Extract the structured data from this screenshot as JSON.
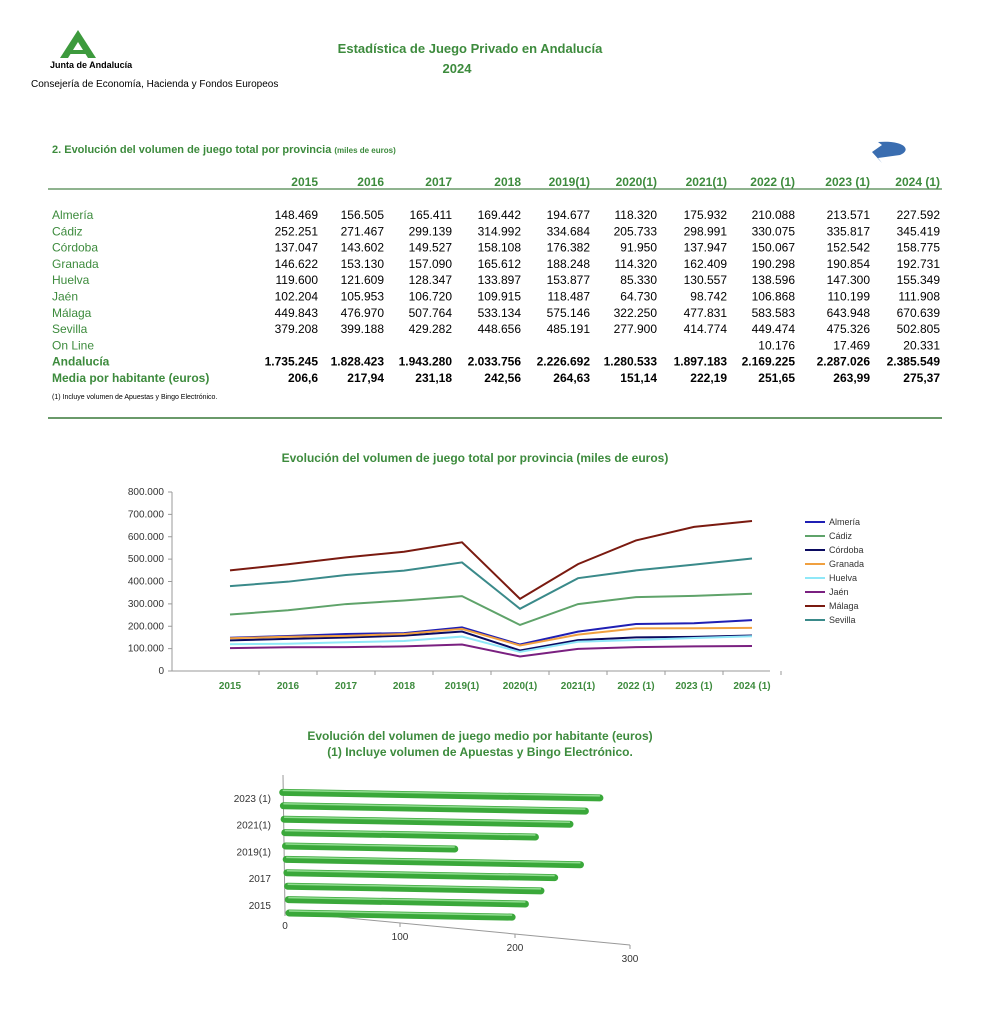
{
  "header": {
    "org": "Junta de Andalucía",
    "dept": "Consejería de Economía, Hacienda y Fondos Europeos",
    "title": "Estadística de Juego Privado en Andalucía",
    "year": "2024"
  },
  "table": {
    "title": "2. Evolución del volumen de juego total por provincia",
    "unit": "(miles de euros)",
    "columns": [
      "2015",
      "2016",
      "2017",
      "2018",
      "2019(1)",
      "2020(1)",
      "2021(1)",
      "2022 (1)",
      "2023 (1)",
      "2024 (1)"
    ],
    "rows": [
      [
        "Almería",
        "148.469",
        "156.505",
        "165.411",
        "169.442",
        "194.677",
        "118.320",
        "175.932",
        "210.088",
        "213.571",
        "227.592"
      ],
      [
        "Cádiz",
        "252.251",
        "271.467",
        "299.139",
        "314.992",
        "334.684",
        "205.733",
        "298.991",
        "330.075",
        "335.817",
        "345.419"
      ],
      [
        "Córdoba",
        "137.047",
        "143.602",
        "149.527",
        "158.108",
        "176.382",
        "91.950",
        "137.947",
        "150.067",
        "152.542",
        "158.775"
      ],
      [
        "Granada",
        "146.622",
        "153.130",
        "157.090",
        "165.612",
        "188.248",
        "114.320",
        "162.409",
        "190.298",
        "190.854",
        "192.731"
      ],
      [
        "Huelva",
        "119.600",
        "121.609",
        "128.347",
        "133.897",
        "153.877",
        "85.330",
        "130.557",
        "138.596",
        "147.300",
        "155.349"
      ],
      [
        "Jaén",
        "102.204",
        "105.953",
        "106.720",
        "109.915",
        "118.487",
        "64.730",
        "98.742",
        "106.868",
        "110.199",
        "111.908"
      ],
      [
        "Málaga",
        "449.843",
        "476.970",
        "507.764",
        "533.134",
        "575.146",
        "322.250",
        "477.831",
        "583.583",
        "643.948",
        "670.639"
      ],
      [
        "Sevilla",
        "379.208",
        "399.188",
        "429.282",
        "448.656",
        "485.191",
        "277.900",
        "414.774",
        "449.474",
        "475.326",
        "502.805"
      ],
      [
        "On Line",
        null,
        null,
        null,
        null,
        null,
        null,
        null,
        "10.176",
        "17.469",
        "20.331"
      ],
      [
        "Andalucía",
        "1.735.245",
        "1.828.423",
        "1.943.280",
        "2.033.756",
        "2.226.692",
        "1.280.533",
        "1.897.183",
        "2.169.225",
        "2.287.026",
        "2.385.549"
      ],
      [
        "Media por habitante (euros)",
        "206,6",
        "217,94",
        "231,18",
        "242,56",
        "264,63",
        "151,14",
        "222,19",
        "251,65",
        "263,99",
        "275,37"
      ]
    ],
    "note": "(1) Incluye volumen de Apuestas y Bingo Electrónico."
  },
  "chart_data": [
    {
      "type": "line",
      "title": "Evolución del volumen de juego total por provincia (miles de euros)",
      "categories": [
        "2015",
        "2016",
        "2017",
        "2018",
        "2019(1)",
        "2020(1)",
        "2021(1)",
        "2022 (1)",
        "2023 (1)",
        "2024 (1)"
      ],
      "ylim": [
        0,
        800000
      ],
      "yticks": [
        0,
        {
          "value": 100000,
          "label": "100.000"
        },
        {
          "value": 200000,
          "label": "200.000"
        },
        {
          "value": 300000,
          "label": "300.000"
        },
        {
          "value": 400000,
          "label": "400.000"
        },
        {
          "value": 500000,
          "label": "500.000"
        },
        {
          "value": 600000,
          "label": "600.000"
        },
        {
          "value": 700000,
          "label": "700.000"
        },
        {
          "value": 800000,
          "label": "800.000"
        }
      ],
      "legend": "right",
      "series": [
        {
          "name": "Almería",
          "color": "#1f1fb4",
          "values": [
            148469,
            156505,
            165411,
            169442,
            194677,
            118320,
            175932,
            210088,
            213571,
            227592
          ]
        },
        {
          "name": "Cádiz",
          "color": "#5fa36a",
          "values": [
            252251,
            271467,
            299139,
            314992,
            334684,
            205733,
            298991,
            330075,
            335817,
            345419
          ]
        },
        {
          "name": "Córdoba",
          "color": "#0a0a60",
          "values": [
            137047,
            143602,
            149527,
            158108,
            176382,
            91950,
            137947,
            150067,
            152542,
            158775
          ]
        },
        {
          "name": "Granada",
          "color": "#f0a040",
          "values": [
            146622,
            153130,
            157090,
            165612,
            188248,
            114320,
            162409,
            190298,
            190854,
            192731
          ]
        },
        {
          "name": "Huelva",
          "color": "#8fe8f8",
          "values": [
            119600,
            121609,
            128347,
            133897,
            153877,
            85330,
            130557,
            138596,
            147300,
            155349
          ]
        },
        {
          "name": "Jaén",
          "color": "#7a2080",
          "values": [
            102204,
            105953,
            106720,
            109915,
            118487,
            64730,
            98742,
            106868,
            110199,
            111908
          ]
        },
        {
          "name": "Málaga",
          "color": "#7a1a10",
          "values": [
            449843,
            476970,
            507764,
            533134,
            575146,
            322250,
            477831,
            583583,
            643948,
            670639
          ]
        },
        {
          "name": "Sevilla",
          "color": "#3a8a8a",
          "values": [
            379208,
            399188,
            429282,
            448656,
            485191,
            277900,
            414774,
            449474,
            475326,
            502805
          ]
        }
      ]
    },
    {
      "type": "bar",
      "orientation": "horizontal",
      "title": "Evolución del volumen de juego medio por habitante (euros)",
      "subtitle": "(1) Incluye volumen de Apuestas y Bingo Electrónico.",
      "categories": [
        "2015",
        null,
        "2017",
        null,
        "2019(1)",
        null,
        "2021(1)",
        null,
        "2023 (1)",
        null
      ],
      "values": [
        206.6,
        217.94,
        231.18,
        242.56,
        264.63,
        151.14,
        222.19,
        251.65,
        263.99,
        275.37
      ],
      "color": "#3aa83a",
      "xlim": [
        0,
        300
      ],
      "xticks": [
        0,
        100,
        200,
        300
      ]
    }
  ]
}
